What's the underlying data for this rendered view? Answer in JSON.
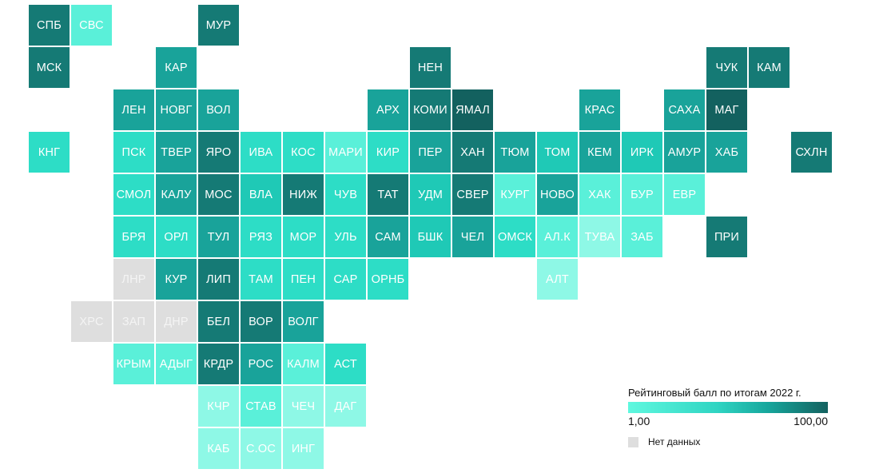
{
  "legend": {
    "title": "Рейтинговый балл по итогам 2022 г.",
    "min_label": "1,00",
    "max_label": "100,00",
    "nodata_label": "Нет данных"
  },
  "colors": {
    "c1": "#13615f",
    "c2": "#157a75",
    "c3": "#19a39a",
    "c4": "#1fc9b6",
    "c5": "#2dddc6",
    "c6": "#5af0d9",
    "c7": "#8ef8e6",
    "nodata": "#dedede"
  },
  "tiles": [
    {
      "label": "СПБ",
      "col": 0,
      "row": 0,
      "color": "c2"
    },
    {
      "label": "СВС",
      "col": 1,
      "row": 0,
      "color": "c6"
    },
    {
      "label": "МУР",
      "col": 4,
      "row": 0,
      "color": "c2"
    },
    {
      "label": "МСК",
      "col": 0,
      "row": 1,
      "color": "c2"
    },
    {
      "label": "КАР",
      "col": 3,
      "row": 1,
      "color": "c3"
    },
    {
      "label": "НЕН",
      "col": 9,
      "row": 1,
      "color": "c2"
    },
    {
      "label": "ЧУК",
      "col": 16,
      "row": 1,
      "color": "c2"
    },
    {
      "label": "КАМ",
      "col": 17,
      "row": 1,
      "color": "c2"
    },
    {
      "label": "ЛЕН",
      "col": 2,
      "row": 2,
      "color": "c3"
    },
    {
      "label": "НОВГ",
      "col": 3,
      "row": 2,
      "color": "c3"
    },
    {
      "label": "ВОЛ",
      "col": 4,
      "row": 2,
      "color": "c3"
    },
    {
      "label": "АРХ",
      "col": 8,
      "row": 2,
      "color": "c3"
    },
    {
      "label": "КОМИ",
      "col": 9,
      "row": 2,
      "color": "c2"
    },
    {
      "label": "ЯМАЛ",
      "col": 10,
      "row": 2,
      "color": "c1"
    },
    {
      "label": "КРАС",
      "col": 13,
      "row": 2,
      "color": "c3"
    },
    {
      "label": "САХА",
      "col": 15,
      "row": 2,
      "color": "c3"
    },
    {
      "label": "МАГ",
      "col": 16,
      "row": 2,
      "color": "c1"
    },
    {
      "label": "КНГ",
      "col": 0,
      "row": 3,
      "color": "c5"
    },
    {
      "label": "ПСК",
      "col": 2,
      "row": 3,
      "color": "c5"
    },
    {
      "label": "ТВЕР",
      "col": 3,
      "row": 3,
      "color": "c3"
    },
    {
      "label": "ЯРО",
      "col": 4,
      "row": 3,
      "color": "c2"
    },
    {
      "label": "ИВА",
      "col": 5,
      "row": 3,
      "color": "c5"
    },
    {
      "label": "КОС",
      "col": 6,
      "row": 3,
      "color": "c5"
    },
    {
      "label": "МАРИ",
      "col": 7,
      "row": 3,
      "color": "c6"
    },
    {
      "label": "КИР",
      "col": 8,
      "row": 3,
      "color": "c5"
    },
    {
      "label": "ПЕР",
      "col": 9,
      "row": 3,
      "color": "c3"
    },
    {
      "label": "ХАН",
      "col": 10,
      "row": 3,
      "color": "c2"
    },
    {
      "label": "ТЮМ",
      "col": 11,
      "row": 3,
      "color": "c3"
    },
    {
      "label": "ТОМ",
      "col": 12,
      "row": 3,
      "color": "c4"
    },
    {
      "label": "КЕМ",
      "col": 13,
      "row": 3,
      "color": "c3"
    },
    {
      "label": "ИРК",
      "col": 14,
      "row": 3,
      "color": "c4"
    },
    {
      "label": "АМУР",
      "col": 15,
      "row": 3,
      "color": "c3"
    },
    {
      "label": "ХАБ",
      "col": 16,
      "row": 3,
      "color": "c3"
    },
    {
      "label": "СХЛН",
      "col": 18,
      "row": 3,
      "color": "c2"
    },
    {
      "label": "СМОЛ",
      "col": 2,
      "row": 4,
      "color": "c5"
    },
    {
      "label": "КАЛУ",
      "col": 3,
      "row": 4,
      "color": "c3"
    },
    {
      "label": "МОС",
      "col": 4,
      "row": 4,
      "color": "c2"
    },
    {
      "label": "ВЛА",
      "col": 5,
      "row": 4,
      "color": "c4"
    },
    {
      "label": "НИЖ",
      "col": 6,
      "row": 4,
      "color": "c2"
    },
    {
      "label": "ЧУВ",
      "col": 7,
      "row": 4,
      "color": "c5"
    },
    {
      "label": "ТАТ",
      "col": 8,
      "row": 4,
      "color": "c2"
    },
    {
      "label": "УДМ",
      "col": 9,
      "row": 4,
      "color": "c4"
    },
    {
      "label": "СВЕР",
      "col": 10,
      "row": 4,
      "color": "c2"
    },
    {
      "label": "КУРГ",
      "col": 11,
      "row": 4,
      "color": "c6"
    },
    {
      "label": "НОВО",
      "col": 12,
      "row": 4,
      "color": "c3"
    },
    {
      "label": "ХАК",
      "col": 13,
      "row": 4,
      "color": "c6"
    },
    {
      "label": "БУР",
      "col": 14,
      "row": 4,
      "color": "c6"
    },
    {
      "label": "ЕВР",
      "col": 15,
      "row": 4,
      "color": "c6"
    },
    {
      "label": "БРЯ",
      "col": 2,
      "row": 5,
      "color": "c5"
    },
    {
      "label": "ОРЛ",
      "col": 3,
      "row": 5,
      "color": "c5"
    },
    {
      "label": "ТУЛ",
      "col": 4,
      "row": 5,
      "color": "c3"
    },
    {
      "label": "РЯЗ",
      "col": 5,
      "row": 5,
      "color": "c5"
    },
    {
      "label": "МОР",
      "col": 6,
      "row": 5,
      "color": "c5"
    },
    {
      "label": "УЛЬ",
      "col": 7,
      "row": 5,
      "color": "c5"
    },
    {
      "label": "САМ",
      "col": 8,
      "row": 5,
      "color": "c3"
    },
    {
      "label": "БШК",
      "col": 9,
      "row": 5,
      "color": "c4"
    },
    {
      "label": "ЧЕЛ",
      "col": 10,
      "row": 5,
      "color": "c3"
    },
    {
      "label": "ОМСК",
      "col": 11,
      "row": 5,
      "color": "c5"
    },
    {
      "label": "АЛ.К",
      "col": 12,
      "row": 5,
      "color": "c6"
    },
    {
      "label": "ТУВА",
      "col": 13,
      "row": 5,
      "color": "c7"
    },
    {
      "label": "ЗАБ",
      "col": 14,
      "row": 5,
      "color": "c6"
    },
    {
      "label": "ПРИ",
      "col": 16,
      "row": 5,
      "color": "c2"
    },
    {
      "label": "ЛНР",
      "col": 2,
      "row": 6,
      "color": "nodata"
    },
    {
      "label": "КУР",
      "col": 3,
      "row": 6,
      "color": "c3"
    },
    {
      "label": "ЛИП",
      "col": 4,
      "row": 6,
      "color": "c2"
    },
    {
      "label": "ТАМ",
      "col": 5,
      "row": 6,
      "color": "c5"
    },
    {
      "label": "ПЕН",
      "col": 6,
      "row": 6,
      "color": "c5"
    },
    {
      "label": "САР",
      "col": 7,
      "row": 6,
      "color": "c5"
    },
    {
      "label": "ОРНБ",
      "col": 8,
      "row": 6,
      "color": "c5"
    },
    {
      "label": "АЛТ",
      "col": 12,
      "row": 6,
      "color": "c7"
    },
    {
      "label": "ХРС",
      "col": 1,
      "row": 7,
      "color": "nodata"
    },
    {
      "label": "ЗАП",
      "col": 2,
      "row": 7,
      "color": "nodata"
    },
    {
      "label": "ДНР",
      "col": 3,
      "row": 7,
      "color": "nodata"
    },
    {
      "label": "БЕЛ",
      "col": 4,
      "row": 7,
      "color": "c2"
    },
    {
      "label": "ВОР",
      "col": 5,
      "row": 7,
      "color": "c2"
    },
    {
      "label": "ВОЛГ",
      "col": 6,
      "row": 7,
      "color": "c3"
    },
    {
      "label": "КРЫМ",
      "col": 2,
      "row": 8,
      "color": "c6"
    },
    {
      "label": "АДЫГ",
      "col": 3,
      "row": 8,
      "color": "c6"
    },
    {
      "label": "КРДР",
      "col": 4,
      "row": 8,
      "color": "c2"
    },
    {
      "label": "РОС",
      "col": 5,
      "row": 8,
      "color": "c3"
    },
    {
      "label": "КАЛМ",
      "col": 6,
      "row": 8,
      "color": "c6"
    },
    {
      "label": "АСТ",
      "col": 7,
      "row": 8,
      "color": "c5"
    },
    {
      "label": "КЧР",
      "col": 4,
      "row": 9,
      "color": "c7"
    },
    {
      "label": "СТАВ",
      "col": 5,
      "row": 9,
      "color": "c6"
    },
    {
      "label": "ЧЕЧ",
      "col": 6,
      "row": 9,
      "color": "c7"
    },
    {
      "label": "ДАГ",
      "col": 7,
      "row": 9,
      "color": "c7"
    },
    {
      "label": "КАБ",
      "col": 4,
      "row": 10,
      "color": "c7"
    },
    {
      "label": "С.ОС",
      "col": 5,
      "row": 10,
      "color": "c7"
    },
    {
      "label": "ИНГ",
      "col": 6,
      "row": 10,
      "color": "c7"
    }
  ]
}
